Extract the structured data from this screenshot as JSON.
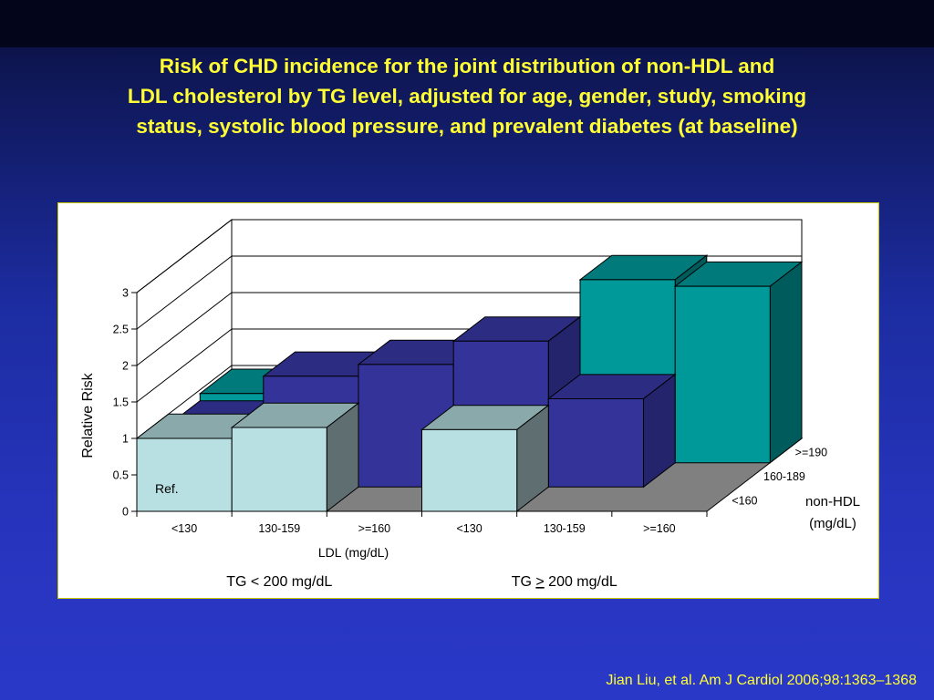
{
  "slide": {
    "title_lines": [
      "Risk of CHD incidence for the joint distribution of non-HDL and",
      "LDL cholesterol by TG level, adjusted for age, gender, study, smoking",
      "status, systolic blood pressure, and prevalent diabetes (at baseline)"
    ],
    "citation": "Jian Liu, et al. Am J Cardiol 2006;98:1363–1368"
  },
  "chart_data": {
    "type": "bar",
    "subtype": "3d-grouped",
    "ylabel": "Relative Risk",
    "xlabel": "LDL (mg/dL)",
    "zlabel": "non-HDL (mg/dL)",
    "ylim": [
      0,
      3
    ],
    "yticks": [
      "0",
      "0.5",
      "1",
      "1.5",
      "2",
      "2.5",
      "3"
    ],
    "categories": [
      "<130",
      "130-159",
      ">=160",
      "<130",
      "130-159",
      ">=160"
    ],
    "tg_groups": [
      {
        "label": "TG < 200 mg/dL",
        "prefix": "TG ",
        "op": "<",
        "suffix": " 200 mg/dL",
        "underline": false
      },
      {
        "label": "TG ≥ 200 mg/dL",
        "prefix": "TG ",
        "op": ">",
        "suffix": " 200 mg/dL",
        "underline": true
      }
    ],
    "series": [
      {
        "name": "<160",
        "values": [
          1.0,
          1.15,
          null,
          1.12,
          null,
          null
        ],
        "colors": {
          "front": "#b8e0e2",
          "side": "#5f6e70",
          "top": "#8aa9ab"
        }
      },
      {
        "name": "160-189",
        "values": [
          0.85,
          1.52,
          1.68,
          2.0,
          1.21,
          null
        ],
        "colors": {
          "front": "#333399",
          "side": "#24246c",
          "top": "#2c2c82"
        }
      },
      {
        "name": ">=190",
        "values": [
          0.95,
          0.98,
          1.04,
          1.33,
          2.51,
          2.42
        ],
        "colors": {
          "front": "#009999",
          "side": "#005c5c",
          "top": "#007a7a"
        }
      }
    ],
    "annotations": [
      {
        "text": "Ref.",
        "series": "<160",
        "category_index": 0
      }
    ],
    "grid": true
  }
}
